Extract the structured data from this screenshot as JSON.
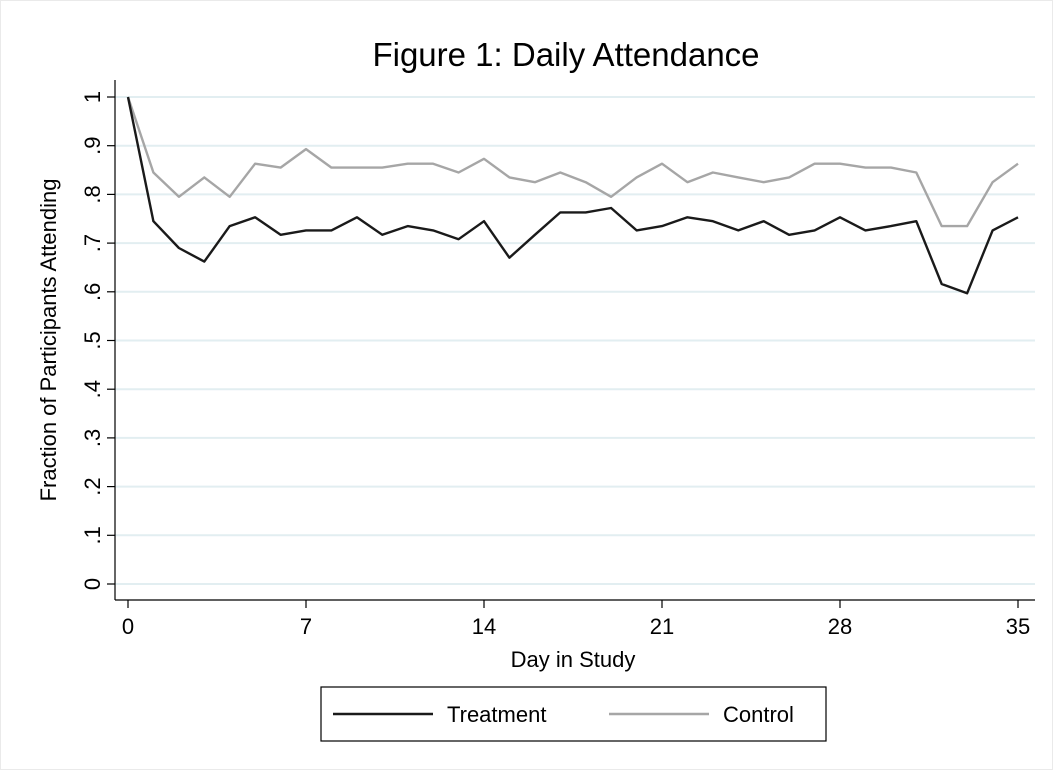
{
  "chart_data": {
    "type": "line",
    "title": "Figure 1: Daily Attendance",
    "xlabel": "Day in Study",
    "ylabel": "Fraction of Participants Attending",
    "xlim": [
      0,
      35
    ],
    "ylim": [
      0,
      1
    ],
    "x_ticks": [
      0,
      7,
      14,
      21,
      28,
      35
    ],
    "x_tick_labels": [
      "0",
      "7",
      "14",
      "21",
      "28",
      "35"
    ],
    "y_ticks": [
      0,
      0.1,
      0.2,
      0.3,
      0.4,
      0.5,
      0.6,
      0.7,
      0.8,
      0.9,
      1
    ],
    "y_tick_labels": [
      "0",
      ".1",
      ".2",
      ".3",
      ".4",
      ".5",
      ".6",
      ".7",
      ".8",
      ".9",
      "1"
    ],
    "grid": true,
    "legend_position": "bottom",
    "x": [
      0,
      1,
      2,
      3,
      4,
      5,
      6,
      7,
      8,
      9,
      10,
      11,
      12,
      13,
      14,
      15,
      16,
      17,
      18,
      19,
      20,
      21,
      22,
      23,
      24,
      25,
      26,
      27,
      28,
      29,
      30,
      31,
      32,
      33,
      34,
      35
    ],
    "series": [
      {
        "name": "Treatment",
        "color": "#1a1a1a",
        "values": [
          1.0,
          0.745,
          0.69,
          0.662,
          0.735,
          0.753,
          0.717,
          0.726,
          0.726,
          0.753,
          0.717,
          0.735,
          0.726,
          0.708,
          0.745,
          0.67,
          0.717,
          0.763,
          0.763,
          0.772,
          0.726,
          0.735,
          0.753,
          0.745,
          0.726,
          0.745,
          0.717,
          0.726,
          0.753,
          0.726,
          0.735,
          0.745,
          0.616,
          0.597,
          0.726,
          0.753
        ]
      },
      {
        "name": "Control",
        "color": "#a6a6a6",
        "values": [
          1.0,
          0.845,
          0.795,
          0.835,
          0.795,
          0.863,
          0.855,
          0.893,
          0.855,
          0.855,
          0.855,
          0.863,
          0.863,
          0.845,
          0.873,
          0.835,
          0.825,
          0.845,
          0.825,
          0.795,
          0.835,
          0.863,
          0.825,
          0.845,
          0.835,
          0.825,
          0.835,
          0.863,
          0.863,
          0.855,
          0.855,
          0.845,
          0.735,
          0.735,
          0.825,
          0.863
        ]
      }
    ],
    "plot_background": "#ffffff",
    "grid_color": "#e2eef1",
    "axis_color": "#000000"
  }
}
